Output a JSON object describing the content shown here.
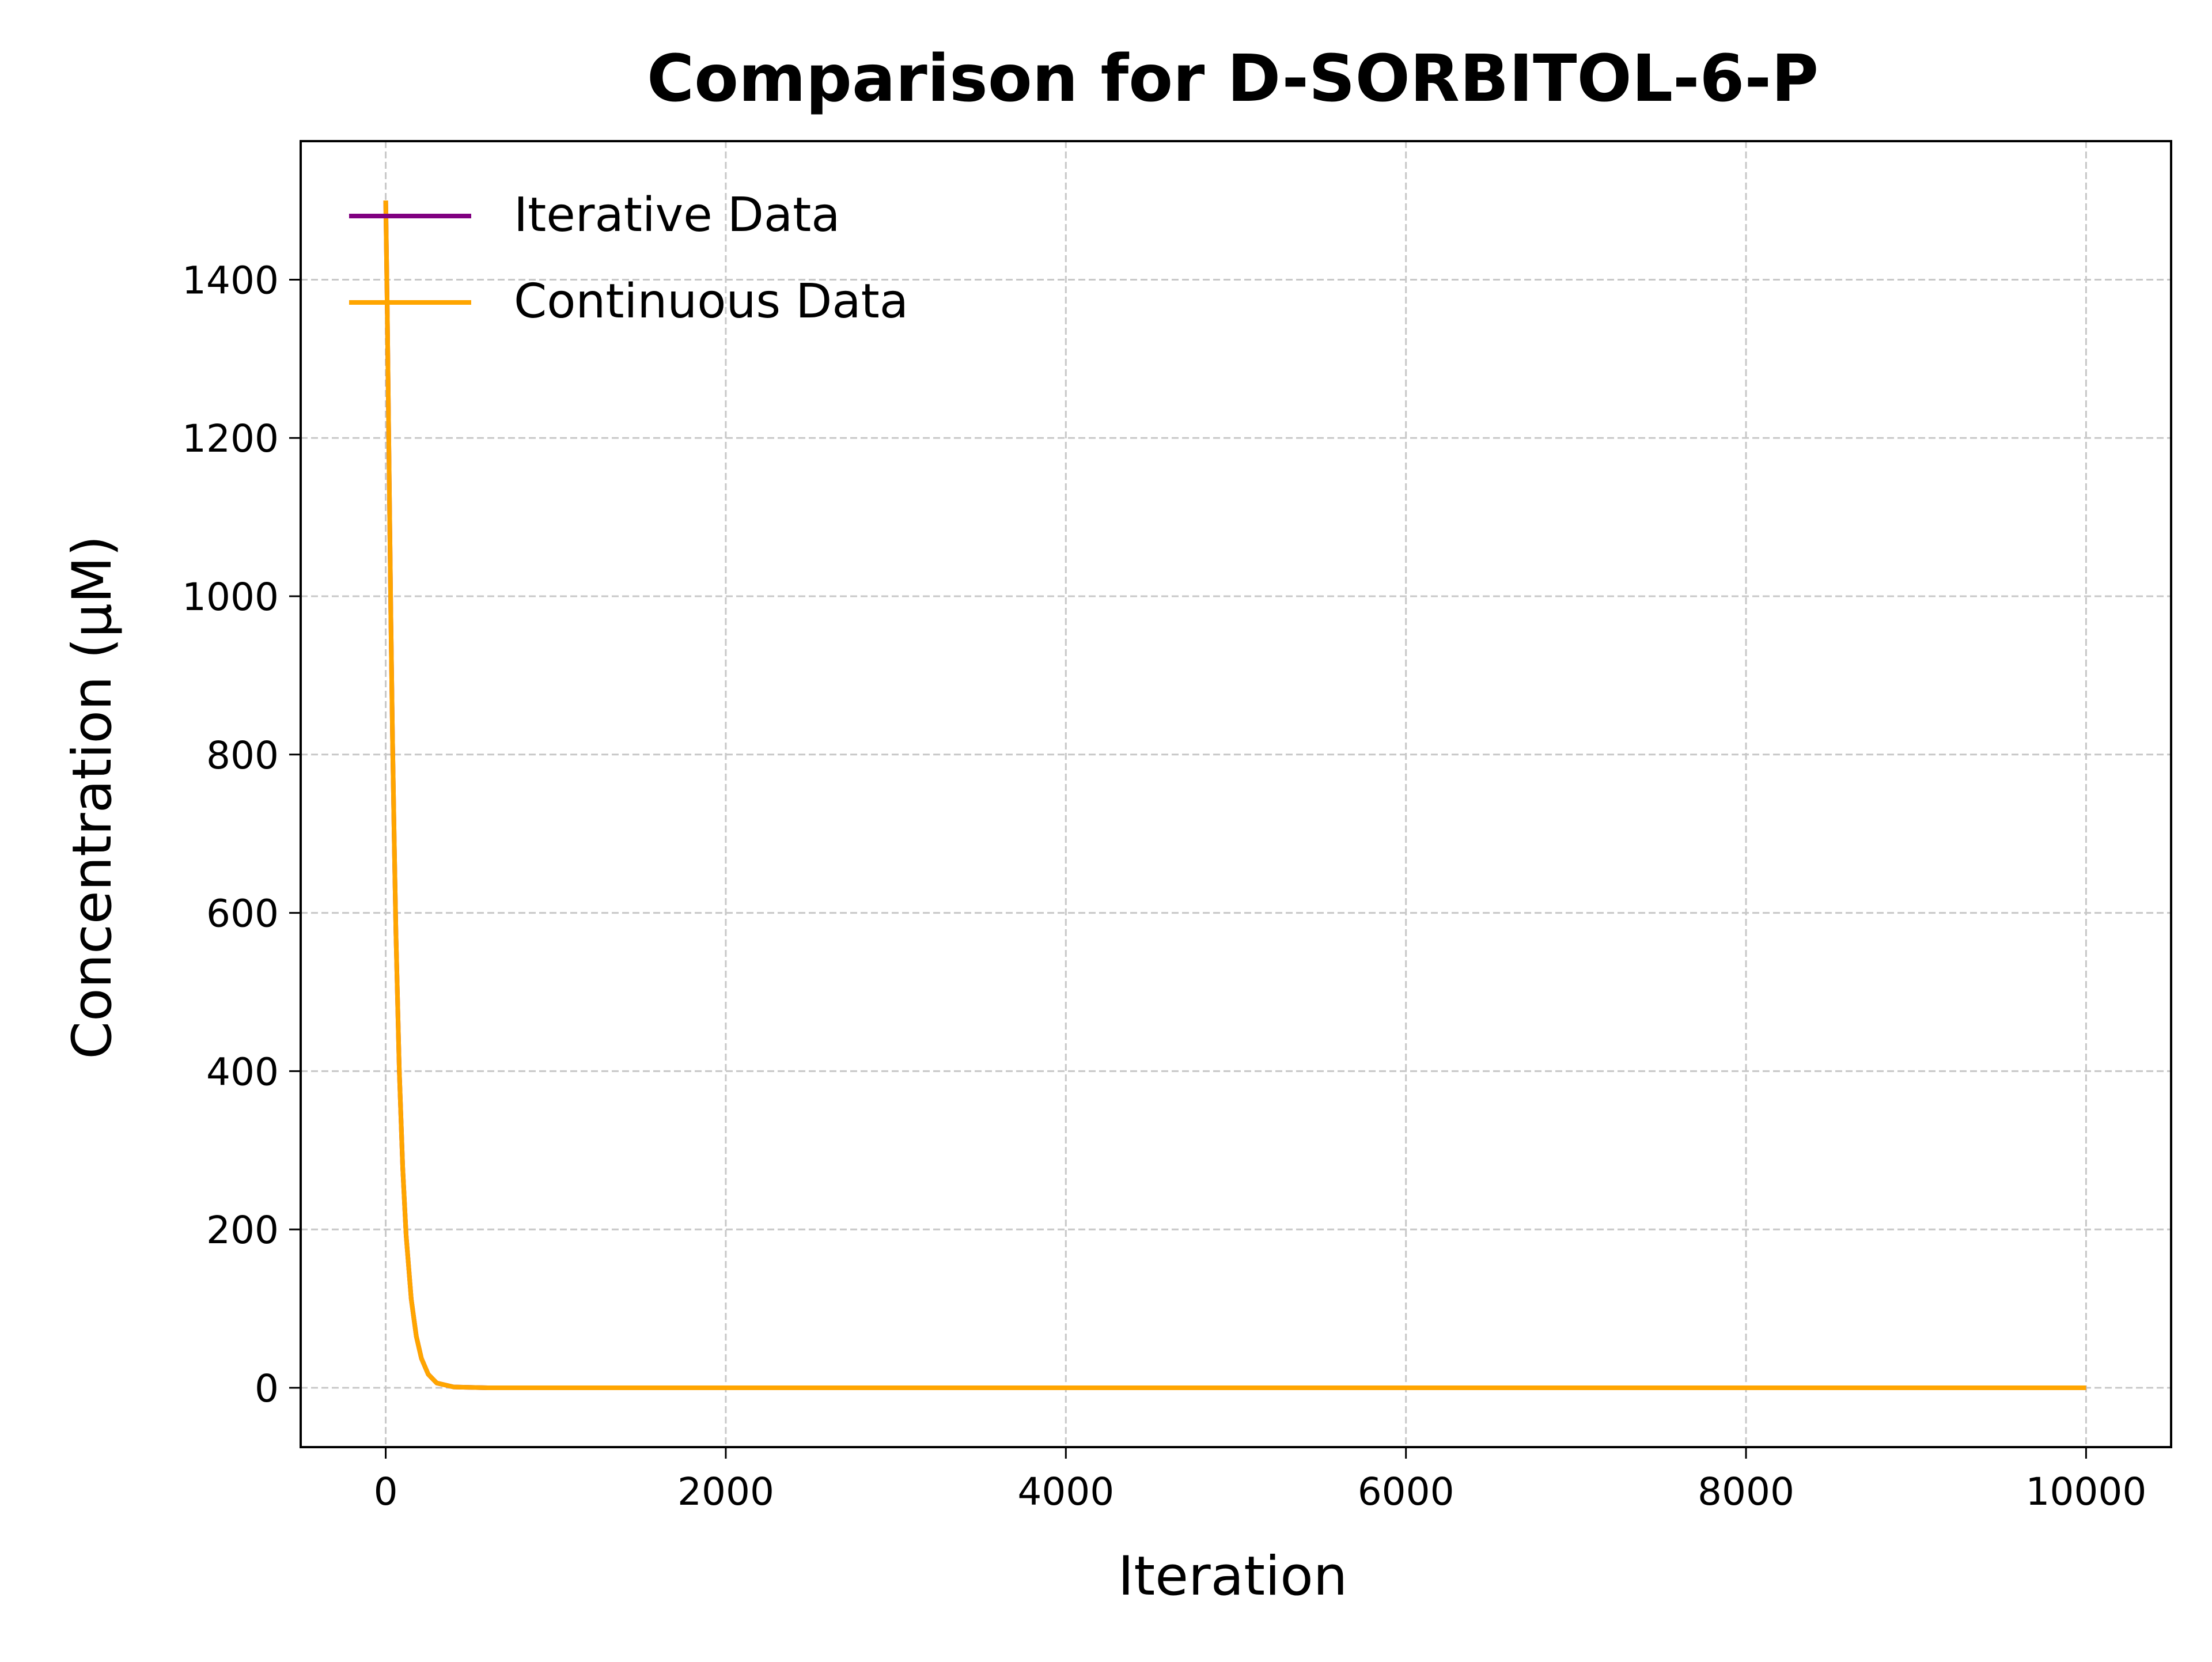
{
  "chart_data": {
    "type": "line",
    "title": "Comparison for D-SORBITOL-6-P",
    "xlabel": "Iteration",
    "ylabel": "Concentration (μM)",
    "xlim": [
      -500,
      10500
    ],
    "ylim": [
      -75,
      1575
    ],
    "xticks": [
      0,
      2000,
      4000,
      6000,
      8000,
      10000
    ],
    "yticks": [
      0,
      200,
      400,
      600,
      800,
      1000,
      1200,
      1400
    ],
    "xtick_labels": [
      "0",
      "2000",
      "4000",
      "6000",
      "8000",
      "10000"
    ],
    "ytick_labels": [
      "0",
      "200",
      "400",
      "600",
      "800",
      "1000",
      "1200",
      "1400"
    ],
    "grid": true,
    "legend_position": "top-left",
    "series": [
      {
        "name": "Iterative Data",
        "color": "#800080",
        "x": [
          0,
          10,
          20,
          30,
          40,
          50,
          60,
          80,
          100,
          120,
          150,
          180,
          210,
          250,
          300,
          400,
          600,
          1000,
          2000,
          4000,
          6000,
          8000,
          10000
        ],
        "y": [
          1500,
          1350,
          1160,
          980,
          820,
          690,
          575,
          400,
          278,
          193,
          112,
          65,
          37,
          17,
          6,
          1,
          0,
          0,
          0,
          0,
          0,
          0,
          0
        ]
      },
      {
        "name": "Continuous Data",
        "color": "#ffa500",
        "x": [
          0,
          10,
          20,
          30,
          40,
          50,
          60,
          80,
          100,
          120,
          150,
          180,
          210,
          250,
          300,
          400,
          600,
          1000,
          2000,
          4000,
          6000,
          8000,
          10000
        ],
        "y": [
          1500,
          1350,
          1160,
          980,
          820,
          690,
          575,
          400,
          278,
          193,
          112,
          65,
          37,
          17,
          6,
          1,
          0,
          0,
          0,
          0,
          0,
          0,
          0
        ]
      }
    ]
  }
}
